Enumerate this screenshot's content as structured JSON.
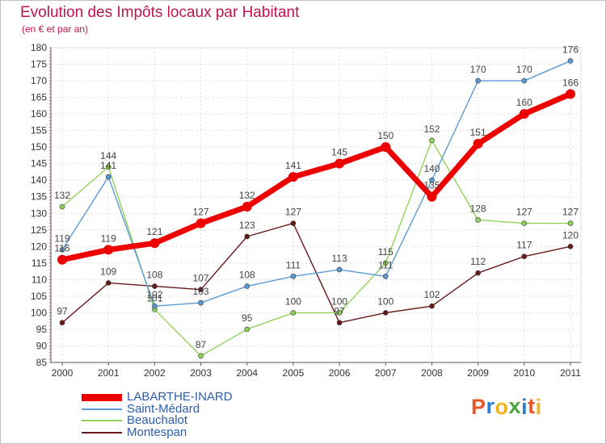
{
  "title": "Evolution des Impôts locaux par Habitant",
  "subtitle": "(en € et par an)",
  "logo": {
    "text": "Proxiti",
    "colors": [
      "#e8542b",
      "#2a7fd0",
      "#f2b21b",
      "#4aa63c",
      "#2a7fd0",
      "#e8542b",
      "#f2b21b"
    ]
  },
  "chart_data": {
    "type": "line",
    "x": [
      "2000",
      "2001",
      "2002",
      "2003",
      "2004",
      "2005",
      "2006",
      "2007",
      "2008",
      "2009",
      "2010",
      "2011"
    ],
    "ylim": [
      85,
      180
    ],
    "yticks": [
      85,
      90,
      95,
      100,
      105,
      110,
      115,
      120,
      125,
      130,
      135,
      140,
      145,
      150,
      155,
      160,
      165,
      170,
      175,
      180
    ],
    "grid": true,
    "legend": "bottom-left",
    "series": [
      {
        "name": "Montespan",
        "color": "#6b1a1a",
        "values": [
          97,
          109,
          108,
          107,
          123,
          127,
          97,
          100,
          102,
          112,
          117,
          120
        ]
      },
      {
        "name": "Beauchalot",
        "color": "#8fd35a",
        "values": [
          132,
          144,
          101,
          87,
          95,
          100,
          100,
          115,
          152,
          128,
          127,
          127
        ]
      },
      {
        "name": "Saint-Médard",
        "color": "#5b9bd5",
        "values": [
          119,
          141,
          102,
          103,
          108,
          111,
          113,
          111,
          140,
          170,
          170,
          176
        ]
      },
      {
        "name": "LABARTHE-INARD",
        "color": "#ee0000",
        "values": [
          116,
          119,
          121,
          127,
          132,
          141,
          145,
          150,
          135,
          151,
          160,
          166
        ]
      }
    ],
    "data_labels": [
      {
        "series": "Montespan",
        "labels": [
          "97",
          "109",
          "108",
          "107",
          "123",
          "127",
          "97",
          "100",
          "102",
          "112",
          "117",
          "120"
        ]
      },
      {
        "series": "Beauchalot",
        "labels": [
          "132",
          "144",
          "101",
          "87",
          "95",
          "100",
          "100",
          "115",
          "152",
          "128",
          "127",
          "127"
        ]
      },
      {
        "series": "Saint-Médard",
        "labels": [
          "119",
          "141",
          "102",
          "103",
          "108",
          "111",
          "113",
          "111",
          "140",
          "170",
          "170",
          "176"
        ]
      },
      {
        "series": "LABARTHE-INARD",
        "labels": [
          "116",
          "119",
          "121",
          "127",
          "132",
          "141",
          "145",
          "150",
          "135",
          "151",
          "160",
          "166"
        ]
      }
    ]
  },
  "legend": [
    {
      "label": "LABARTHE-INARD",
      "color": "#ee0000",
      "thick": true
    },
    {
      "label": "Saint-Médard",
      "color": "#5b9bd5",
      "thick": false
    },
    {
      "label": "Beauchalot",
      "color": "#8fd35a",
      "thick": false
    },
    {
      "label": "Montespan",
      "color": "#6b1a1a",
      "thick": false
    }
  ]
}
